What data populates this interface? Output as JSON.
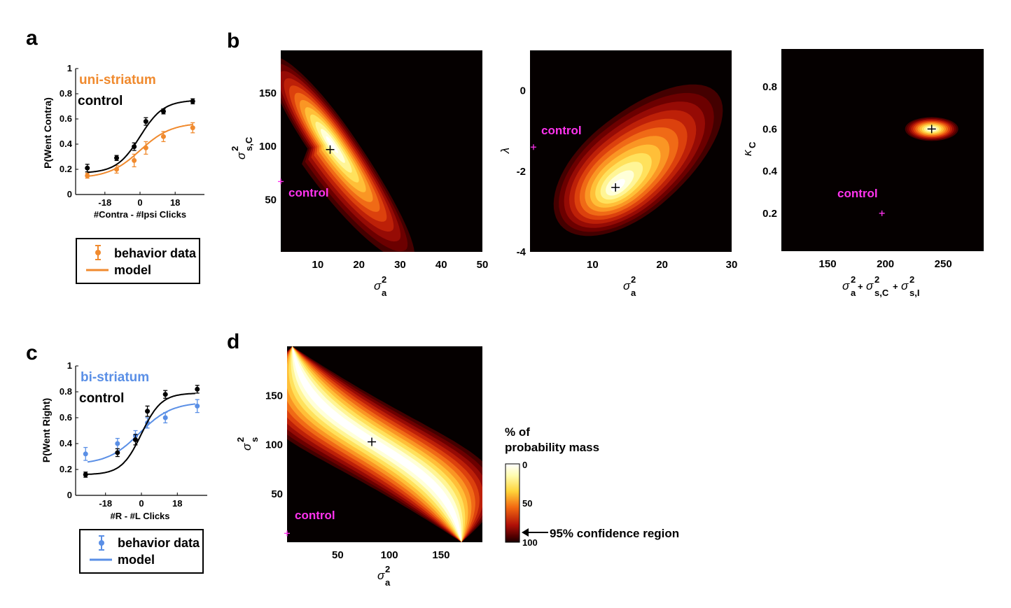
{
  "panels": {
    "a": "a",
    "b": "b",
    "c": "c",
    "d": "d"
  },
  "colors": {
    "control": "#000000",
    "uni_striatum": "#f08a2e",
    "bi_striatum": "#5a8fe6",
    "control_marker": "#ff33ee",
    "heat_background": "#050000"
  },
  "chart_data": [
    {
      "id": "a",
      "type": "line",
      "xlabel": "#Contra - #Ipsi Clicks",
      "ylabel": "P(Went Contra)",
      "xlim": [
        -33,
        33
      ],
      "ylim": [
        0,
        1
      ],
      "xticks": [
        -18,
        0,
        18
      ],
      "yticks": [
        0,
        0.2,
        0.4,
        0.6,
        0.8,
        1
      ],
      "ytick_labels": [
        "0",
        "0.2",
        "0.4",
        "0.6",
        "0.8",
        "1"
      ],
      "series": [
        {
          "name": "uni-striatum",
          "color": "#f08a2e",
          "data_x": [
            -27,
            -12,
            -3,
            3,
            12,
            27
          ],
          "data_y": [
            0.15,
            0.2,
            0.27,
            0.37,
            0.46,
            0.53
          ],
          "err": [
            0.02,
            0.03,
            0.05,
            0.05,
            0.04,
            0.04
          ],
          "model": {
            "min": 0.13,
            "max": 0.57,
            "x0": 0,
            "scale": 8
          }
        },
        {
          "name": "control",
          "color": "#000000",
          "data_x": [
            -27,
            -12,
            -3,
            3,
            12,
            27
          ],
          "data_y": [
            0.21,
            0.29,
            0.38,
            0.58,
            0.66,
            0.74
          ],
          "err": [
            0.03,
            0.02,
            0.03,
            0.03,
            0.02,
            0.02
          ],
          "model": {
            "min": 0.17,
            "max": 0.75,
            "x0": 0,
            "scale": 6
          }
        }
      ],
      "legend": {
        "data_label": "behavior data",
        "model_label": "model"
      }
    },
    {
      "id": "b1",
      "type": "heatmap",
      "xlabel": "σ_a^2",
      "ylabel": "σ_s,C^2",
      "xlim": [
        1,
        50
      ],
      "ylim": [
        1,
        190
      ],
      "xticks": [
        10,
        20,
        30,
        40,
        50
      ],
      "yticks": [
        50,
        100,
        150
      ],
      "best_fit": [
        13,
        97
      ],
      "control_point": [
        1,
        67
      ],
      "control_label": "control"
    },
    {
      "id": "b2",
      "type": "heatmap",
      "xlabel": "σ_a^2",
      "ylabel": "λ",
      "xlim": [
        1,
        30
      ],
      "ylim": [
        -4,
        1
      ],
      "xticks": [
        10,
        20,
        30
      ],
      "yticks": [
        -4,
        -2,
        0
      ],
      "best_fit": [
        13.3,
        -2.4
      ],
      "control_point": [
        1.5,
        -1.4
      ],
      "control_label": "control"
    },
    {
      "id": "b3",
      "type": "heatmap",
      "xlabel": "σ_a^2+σ_s,C^2+σ_s,I^2",
      "ylabel": "κ_C",
      "xlim": [
        110,
        285
      ],
      "ylim": [
        0.02,
        0.98
      ],
      "xticks": [
        150,
        200,
        250
      ],
      "yticks": [
        0.2,
        0.4,
        0.6,
        0.8
      ],
      "best_fit": [
        240,
        0.6
      ],
      "control_point": [
        197,
        0.2
      ],
      "control_label": "control"
    },
    {
      "id": "c",
      "type": "line",
      "xlabel": "#R - #L Clicks",
      "ylabel": "P(Went Right)",
      "xlim": [
        -33,
        33
      ],
      "ylim": [
        0,
        1
      ],
      "xticks": [
        -18,
        0,
        18
      ],
      "yticks": [
        0,
        0.2,
        0.4,
        0.6,
        0.8,
        1
      ],
      "ytick_labels": [
        "0",
        "0.2",
        "0.4",
        "0.6",
        "0.8",
        "1"
      ],
      "series": [
        {
          "name": "bi-striatum",
          "color": "#5a8fe6",
          "data_x": [
            -28,
            -12,
            -3,
            3,
            12,
            28
          ],
          "data_y": [
            0.32,
            0.4,
            0.46,
            0.56,
            0.6,
            0.69
          ],
          "err": [
            0.05,
            0.04,
            0.04,
            0.04,
            0.04,
            0.05
          ],
          "model": {
            "min": 0.24,
            "max": 0.72,
            "x0": -1,
            "scale": 8
          }
        },
        {
          "name": "control",
          "color": "#000000",
          "data_x": [
            -28,
            -12,
            -3,
            3,
            12,
            28
          ],
          "data_y": [
            0.16,
            0.33,
            0.43,
            0.65,
            0.78,
            0.82
          ],
          "err": [
            0.02,
            0.03,
            0.04,
            0.04,
            0.03,
            0.03
          ],
          "model": {
            "min": 0.16,
            "max": 0.79,
            "x0": 0,
            "scale": 5
          }
        }
      ],
      "legend": {
        "data_label": "behavior data",
        "model_label": "model"
      }
    },
    {
      "id": "d",
      "type": "heatmap",
      "xlabel": "σ_a^2",
      "ylabel": "σ_s^2",
      "xlim": [
        1,
        190
      ],
      "ylim": [
        1,
        200
      ],
      "xticks": [
        50,
        100,
        150
      ],
      "yticks": [
        50,
        100,
        150
      ],
      "best_fit": [
        83,
        103
      ],
      "control_point": [
        1,
        10
      ],
      "control_label": "control"
    }
  ],
  "colorbar": {
    "title_line1": "% of",
    "title_line2": "probability mass",
    "ticks": [
      "0",
      "50",
      "100"
    ],
    "arrow_label": "95% confidence region"
  }
}
